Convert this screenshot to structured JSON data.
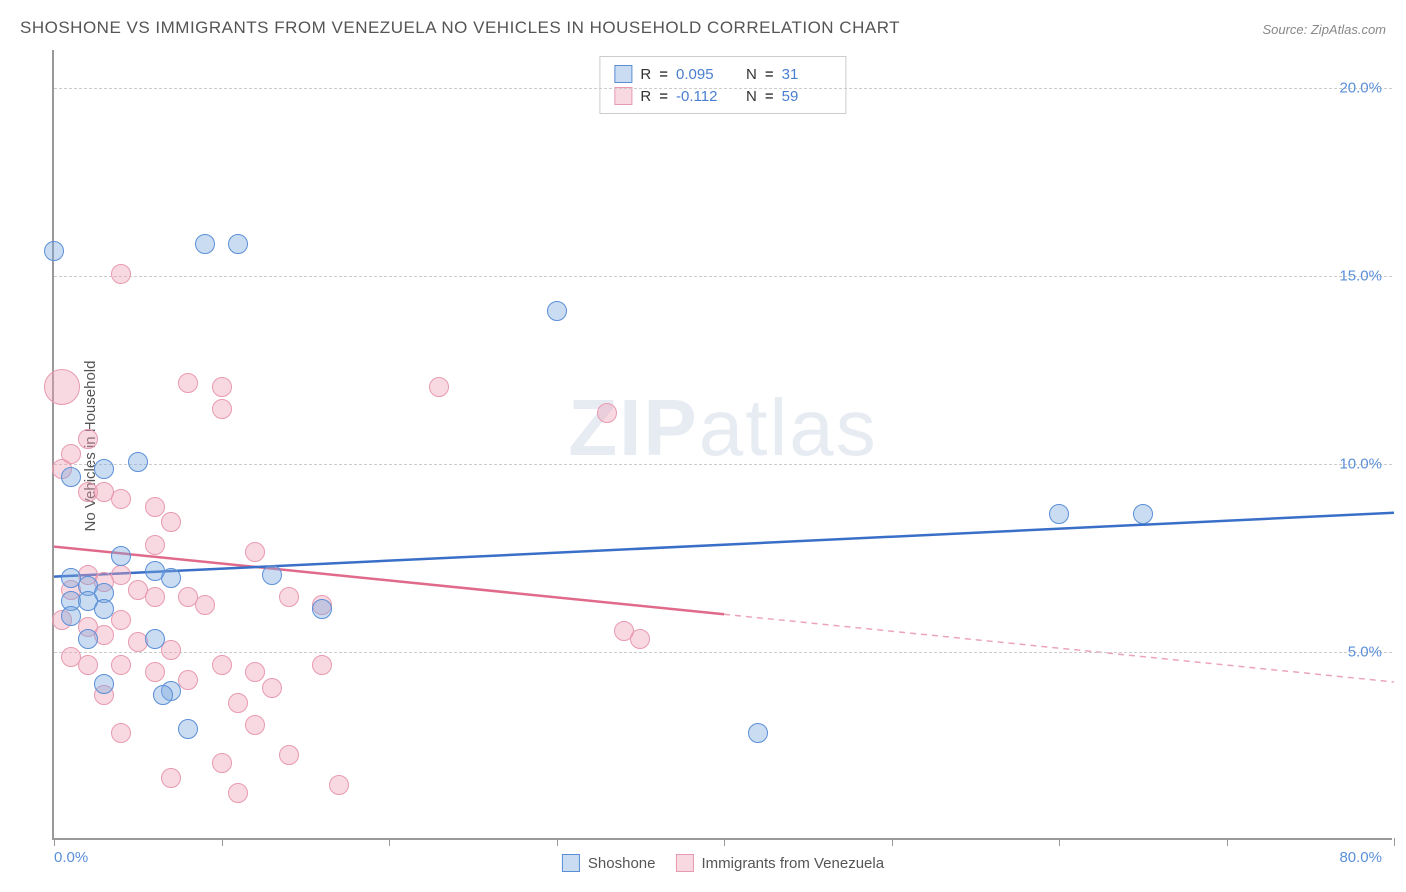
{
  "title": "SHOSHONE VS IMMIGRANTS FROM VENEZUELA NO VEHICLES IN HOUSEHOLD CORRELATION CHART",
  "source": "Source: ZipAtlas.com",
  "ylabel": "No Vehicles in Household",
  "watermark_bold": "ZIP",
  "watermark_light": "atlas",
  "chart": {
    "type": "scatter",
    "background_color": "#ffffff",
    "grid_color": "#cccccc",
    "axis_color": "#999999",
    "tick_label_color": "#5a8fd8",
    "xlim": [
      0,
      80
    ],
    "ylim": [
      0,
      21
    ],
    "x_ticks": [
      0,
      10,
      20,
      30,
      40,
      50,
      60,
      70,
      80
    ],
    "x_tick_labels": {
      "0": "0.0%",
      "80": "80.0%"
    },
    "y_ticks": [
      5,
      10,
      15,
      20
    ],
    "y_tick_labels": {
      "5": "5.0%",
      "10": "10.0%",
      "15": "15.0%",
      "20": "20.0%"
    },
    "title_fontsize": 17,
    "label_fontsize": 15,
    "tick_fontsize": 15
  },
  "series_a": {
    "label": "Shoshone",
    "r_value": "0.095",
    "n_value": "31",
    "fill_color": "rgba(122, 168, 222, 0.4)",
    "stroke_color": "#5a8fd8",
    "line_color": "#3a6fc8",
    "line_width": 2.5,
    "marker_radius": 10,
    "trend": {
      "x1": 0,
      "y1": 7.0,
      "x2": 80,
      "y2": 8.7,
      "solid_until_x": 80
    },
    "points": [
      [
        0,
        15.6
      ],
      [
        9,
        15.8
      ],
      [
        11,
        15.8
      ],
      [
        30,
        14.0
      ],
      [
        3,
        9.8
      ],
      [
        7,
        6.9
      ],
      [
        1,
        6.9
      ],
      [
        2,
        6.7
      ],
      [
        3,
        6.5
      ],
      [
        1,
        6.3
      ],
      [
        6,
        7.1
      ],
      [
        4,
        7.5
      ],
      [
        5,
        10.0
      ],
      [
        2,
        6.3
      ],
      [
        3,
        6.1
      ],
      [
        13,
        7.0
      ],
      [
        16,
        6.1
      ],
      [
        1,
        5.9
      ],
      [
        2,
        5.3
      ],
      [
        6,
        5.3
      ],
      [
        7,
        3.9
      ],
      [
        6.5,
        3.8
      ],
      [
        8,
        2.9
      ],
      [
        3,
        4.1
      ],
      [
        42,
        2.8
      ],
      [
        60,
        8.6
      ],
      [
        65,
        8.6
      ],
      [
        1,
        9.6
      ]
    ]
  },
  "series_b": {
    "label": "Immigrants from Venezuela",
    "r_value": "-0.112",
    "n_value": "59",
    "fill_color": "rgba(240, 160, 180, 0.4)",
    "stroke_color": "#e89ab0",
    "line_color": "#e06a8a",
    "line_width": 2.5,
    "marker_radius": 10,
    "trend": {
      "x1": 0,
      "y1": 7.8,
      "x2": 80,
      "y2": 4.2,
      "solid_until_x": 40
    },
    "points": [
      [
        0.5,
        12.0,
        18
      ],
      [
        4,
        15.0
      ],
      [
        2,
        10.6
      ],
      [
        1,
        10.2
      ],
      [
        0.5,
        9.8
      ],
      [
        2,
        9.2
      ],
      [
        3,
        9.2
      ],
      [
        4,
        9.0
      ],
      [
        8,
        12.1
      ],
      [
        10,
        12.0
      ],
      [
        10,
        11.4
      ],
      [
        23,
        12.0
      ],
      [
        33,
        11.3
      ],
      [
        6,
        8.8
      ],
      [
        7,
        8.4
      ],
      [
        4,
        7.0
      ],
      [
        2,
        7.0
      ],
      [
        3,
        6.8
      ],
      [
        1,
        6.6
      ],
      [
        5,
        6.6
      ],
      [
        6,
        6.4
      ],
      [
        8,
        6.4
      ],
      [
        9,
        6.2
      ],
      [
        4,
        5.8
      ],
      [
        2,
        5.6
      ],
      [
        3,
        5.4
      ],
      [
        5,
        5.2
      ],
      [
        7,
        5.0
      ],
      [
        2,
        4.6
      ],
      [
        4,
        4.6
      ],
      [
        6,
        4.4
      ],
      [
        8,
        4.2
      ],
      [
        3,
        3.8
      ],
      [
        10,
        4.6
      ],
      [
        12,
        4.4
      ],
      [
        11,
        3.6
      ],
      [
        12,
        3.0
      ],
      [
        13,
        4.0
      ],
      [
        16,
        4.6
      ],
      [
        14,
        2.2
      ],
      [
        10,
        2.0
      ],
      [
        7,
        1.6
      ],
      [
        17,
        1.4
      ],
      [
        11,
        1.2
      ],
      [
        35,
        5.3
      ],
      [
        34,
        5.5
      ],
      [
        12,
        7.6
      ],
      [
        0.5,
        5.8
      ],
      [
        1,
        4.8
      ],
      [
        4,
        2.8
      ],
      [
        6,
        7.8
      ],
      [
        14,
        6.4
      ],
      [
        16,
        6.2
      ]
    ]
  },
  "legend_top": {
    "r_prefix": "R",
    "n_prefix": "N",
    "equals": " = "
  }
}
